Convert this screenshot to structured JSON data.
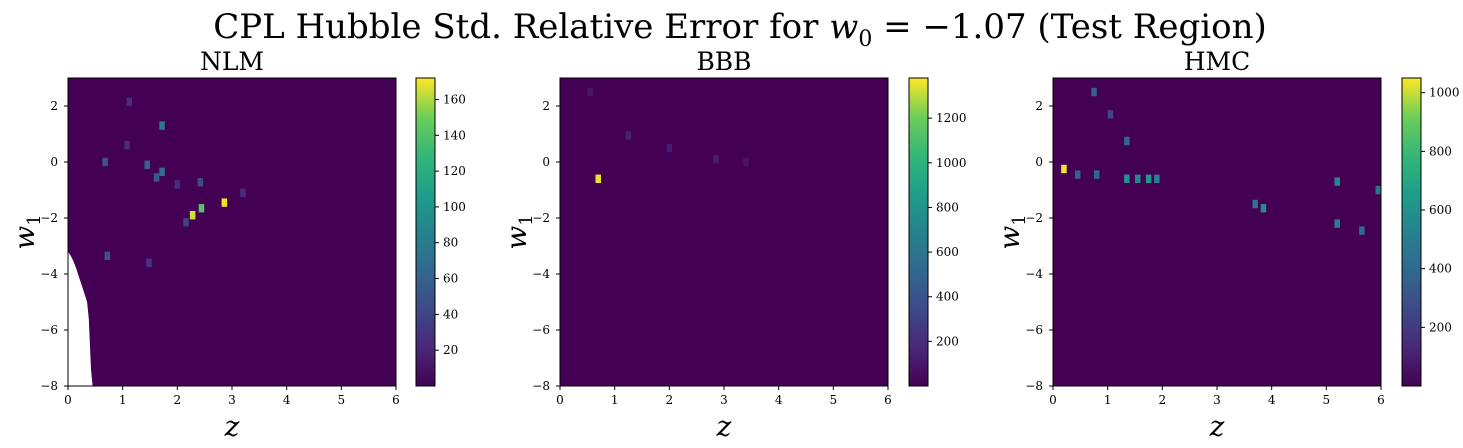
{
  "figure": {
    "suptitle_text": "CPL Hubble Std. Relative Error for ",
    "suptitle_math_var": "w",
    "suptitle_math_sub": "0",
    "suptitle_math_eq": " = −1.07",
    "suptitle_tail": " (Test Region)"
  },
  "chart_data": [
    {
      "type": "heatmap",
      "title": "NLM",
      "xlabel": "z",
      "ylabel": "w",
      "ylabel_sub": "1",
      "xlim": [
        0,
        6
      ],
      "ylim": [
        -8,
        3
      ],
      "xticks": [
        "0",
        "1",
        "2",
        "3",
        "4",
        "5",
        "6"
      ],
      "yticks": [
        "2",
        "0",
        "−2",
        "−4",
        "−6",
        "−8"
      ],
      "colormap": "viridis",
      "colorbar_range": [
        0,
        172
      ],
      "colorbar_ticks": [
        "20",
        "40",
        "60",
        "80",
        "100",
        "120",
        "140",
        "160"
      ],
      "background_value": 0,
      "missing_region": "white (NaN) wedge near z = 0–0.4 for w1 below about −3.2",
      "hotspots": [
        {
          "z": 2.86,
          "w1": -1.45,
          "value": 170
        },
        {
          "z": 2.28,
          "w1": -1.9,
          "value": 165
        },
        {
          "z": 2.44,
          "w1": -1.65,
          "value": 140
        },
        {
          "z": 1.72,
          "w1": 1.3,
          "value": 80
        },
        {
          "z": 1.45,
          "w1": -0.1,
          "value": 60
        },
        {
          "z": 1.72,
          "w1": -0.35,
          "value": 70
        },
        {
          "z": 1.62,
          "w1": -0.55,
          "value": 55
        },
        {
          "z": 0.68,
          "w1": 0.0,
          "value": 50
        },
        {
          "z": 2.42,
          "w1": -0.72,
          "value": 45
        },
        {
          "z": 0.72,
          "w1": -3.35,
          "value": 50
        },
        {
          "z": 2.16,
          "w1": -2.15,
          "value": 40
        },
        {
          "z": 1.12,
          "w1": 2.15,
          "value": 25
        },
        {
          "z": 1.08,
          "w1": 0.6,
          "value": 25
        },
        {
          "z": 1.48,
          "w1": -3.6,
          "value": 30
        },
        {
          "z": 2.0,
          "w1": -0.8,
          "value": 25
        },
        {
          "z": 3.2,
          "w1": -1.1,
          "value": 25
        }
      ]
    },
    {
      "type": "heatmap",
      "title": "BBB",
      "xlabel": "z",
      "ylabel": "w",
      "ylabel_sub": "1",
      "xlim": [
        0,
        6
      ],
      "ylim": [
        -8,
        3
      ],
      "xticks": [
        "0",
        "1",
        "2",
        "3",
        "4",
        "5",
        "6"
      ],
      "yticks": [
        "2",
        "0",
        "−2",
        "−4",
        "−6",
        "−8"
      ],
      "colormap": "viridis",
      "colorbar_range": [
        0,
        1380
      ],
      "colorbar_ticks": [
        "200",
        "400",
        "600",
        "800",
        "1000",
        "1200"
      ],
      "background_value": 0,
      "hotspots": [
        {
          "z": 0.7,
          "w1": -0.6,
          "value": 1360
        },
        {
          "z": 1.25,
          "w1": 0.95,
          "value": 150
        },
        {
          "z": 2.0,
          "w1": 0.5,
          "value": 130
        },
        {
          "z": 2.85,
          "w1": 0.1,
          "value": 120
        },
        {
          "z": 0.55,
          "w1": 2.5,
          "value": 100
        },
        {
          "z": 3.4,
          "w1": 0.0,
          "value": 90
        }
      ]
    },
    {
      "type": "heatmap",
      "title": "HMC",
      "xlabel": "z",
      "ylabel": "w",
      "ylabel_sub": "1",
      "xlim": [
        0,
        6
      ],
      "ylim": [
        -8,
        3
      ],
      "xticks": [
        "0",
        "1",
        "2",
        "3",
        "4",
        "5",
        "6"
      ],
      "yticks": [
        "2",
        "0",
        "−2",
        "−4",
        "−6",
        "−8"
      ],
      "colormap": "viridis",
      "colorbar_range": [
        0,
        1050
      ],
      "colorbar_ticks": [
        "200",
        "400",
        "600",
        "800",
        "1000"
      ],
      "background_value": 0,
      "hotspots": [
        {
          "z": 0.2,
          "w1": -0.25,
          "value": 1040
        },
        {
          "z": 1.35,
          "w1": -0.6,
          "value": 600
        },
        {
          "z": 1.55,
          "w1": -0.6,
          "value": 560
        },
        {
          "z": 1.75,
          "w1": -0.6,
          "value": 620
        },
        {
          "z": 1.9,
          "w1": -0.6,
          "value": 520
        },
        {
          "z": 3.85,
          "w1": -1.65,
          "value": 580
        },
        {
          "z": 5.2,
          "w1": -0.7,
          "value": 560
        },
        {
          "z": 5.2,
          "w1": -2.2,
          "value": 500
        },
        {
          "z": 1.35,
          "w1": 0.75,
          "value": 400
        },
        {
          "z": 0.75,
          "w1": 2.5,
          "value": 350
        },
        {
          "z": 0.45,
          "w1": -0.45,
          "value": 350
        },
        {
          "z": 0.8,
          "w1": -0.45,
          "value": 400
        },
        {
          "z": 3.7,
          "w1": -1.5,
          "value": 450
        },
        {
          "z": 5.95,
          "w1": -1.0,
          "value": 450
        },
        {
          "z": 5.65,
          "w1": -2.45,
          "value": 400
        },
        {
          "z": 1.05,
          "w1": 1.7,
          "value": 250
        }
      ]
    }
  ]
}
